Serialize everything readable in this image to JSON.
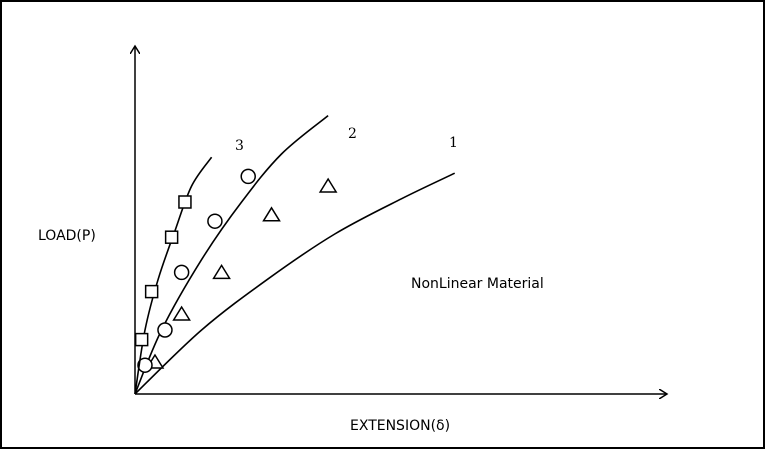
{
  "chart_data": {
    "type": "scatter",
    "title": "",
    "xlabel": "EXTENSION(δ)",
    "ylabel": "LOAD(P)",
    "annotation": "NonLinear Material",
    "ticks_shown": false,
    "grid": false,
    "xlim": [
      0,
      100
    ],
    "ylim": [
      0,
      100
    ],
    "series": [
      {
        "name": "1",
        "marker": "triangle",
        "curve": [
          [
            0,
            0
          ],
          [
            20,
            20
          ],
          [
            40,
            36
          ],
          [
            60,
            50
          ],
          [
            80,
            61
          ],
          [
            96,
            69
          ]
        ],
        "points": [
          [
            6,
            10
          ],
          [
            14,
            25
          ],
          [
            26,
            38
          ],
          [
            41,
            56
          ],
          [
            58,
            65
          ]
        ]
      },
      {
        "name": "2",
        "marker": "circle",
        "curve": [
          [
            0,
            0
          ],
          [
            8,
            20
          ],
          [
            20,
            42
          ],
          [
            32,
            60
          ],
          [
            44,
            75
          ],
          [
            58,
            87
          ]
        ],
        "points": [
          [
            3,
            9
          ],
          [
            9,
            20
          ],
          [
            14,
            38
          ],
          [
            24,
            54
          ],
          [
            34,
            68
          ]
        ]
      },
      {
        "name": "3",
        "marker": "square",
        "curve": [
          [
            0,
            0
          ],
          [
            3,
            20
          ],
          [
            7,
            36
          ],
          [
            12,
            51
          ],
          [
            17,
            65
          ],
          [
            23,
            74
          ]
        ],
        "points": [
          [
            2,
            17
          ],
          [
            5,
            32
          ],
          [
            11,
            49
          ],
          [
            15,
            60
          ]
        ]
      }
    ],
    "curve_labels": [
      "3",
      "2",
      "1"
    ]
  }
}
